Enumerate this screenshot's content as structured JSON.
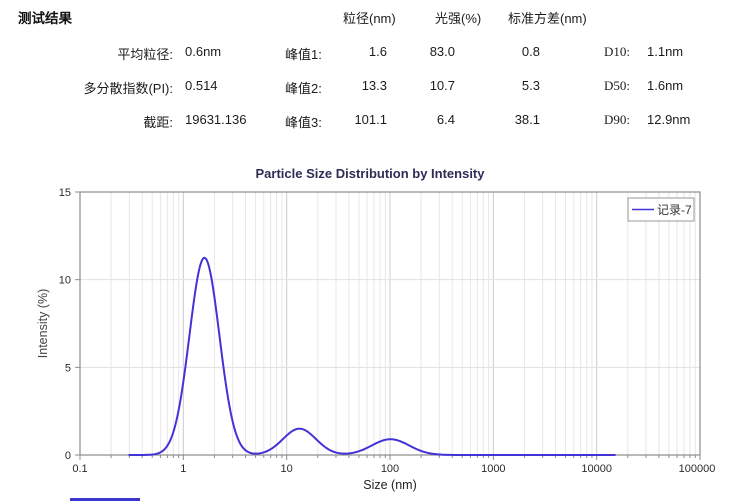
{
  "report": {
    "section_title": "测试结果",
    "columns": {
      "size": "粒径(nm)",
      "intensity": "光强(%)",
      "std": "标准方差(nm)"
    },
    "left_rows": [
      {
        "label": "平均粒径:",
        "value": "0.6nm"
      },
      {
        "label": "多分散指数(PI):",
        "value": "0.514"
      },
      {
        "label": "截距:",
        "value": "19631.136"
      }
    ],
    "peaks": [
      {
        "label": "峰值1:",
        "size": "1.6",
        "intensity": "83.0",
        "std": "0.8"
      },
      {
        "label": "峰值2:",
        "size": "13.3",
        "intensity": "10.7",
        "std": "5.3"
      },
      {
        "label": "峰值3:",
        "size": "101.1",
        "intensity": "6.4",
        "std": "38.1"
      }
    ],
    "percentiles": [
      {
        "label": "D10:",
        "value": "1.1nm"
      },
      {
        "label": "D50:",
        "value": "1.6nm"
      },
      {
        "label": "D90:",
        "value": "12.9nm"
      }
    ]
  },
  "chart_data": {
    "type": "line",
    "title": "Particle Size Distribution by Intensity",
    "xlabel": "Size (nm)",
    "ylabel": "Intensity (%)",
    "x_scale": "log",
    "xlim": [
      0.1,
      100000
    ],
    "ylim": [
      0,
      15
    ],
    "x_ticks": [
      0.1,
      1,
      10,
      100,
      1000,
      10000,
      100000
    ],
    "x_tick_labels": [
      "0.1",
      "1",
      "10",
      "100",
      "1000",
      "10000",
      "100000"
    ],
    "y_ticks": [
      0,
      5,
      10,
      15
    ],
    "grid": true,
    "legend": {
      "label": "记录-7",
      "position": "top-right"
    },
    "series": [
      {
        "name": "记录-7",
        "color": "#4333d6",
        "curve_range_nm": [
          0.3,
          15000
        ],
        "peaks": [
          {
            "center_nm": 1.6,
            "height_pct": 11.25,
            "sigma_log10": 0.145
          },
          {
            "center_nm": 13.3,
            "height_pct": 1.5,
            "sigma_log10": 0.16
          },
          {
            "center_nm": 101.1,
            "height_pct": 0.9,
            "sigma_log10": 0.18
          }
        ]
      }
    ],
    "colors": {
      "title": "#2d2d55",
      "axis": "#8c8c8c",
      "grid_minor": "#e7e7e7",
      "grid_major": "#cccccc",
      "grid_horizontal": "#e0e0e0",
      "tick_text": "#2b2b2b",
      "legend_border": "#999999"
    }
  }
}
